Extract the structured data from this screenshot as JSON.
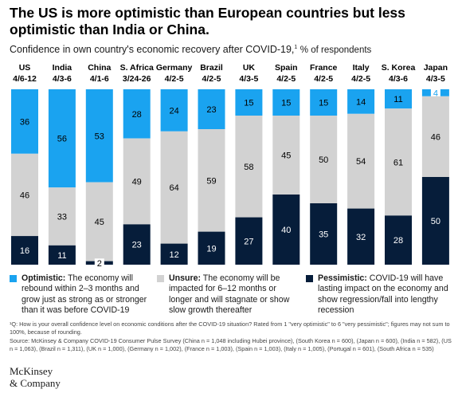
{
  "title": "The US is more optimistic than European countries but less optimistic than India or China.",
  "subtitle": {
    "text": "Confidence in own country's economic recovery after COVID-19,",
    "sup": "1",
    "unit": "% of respondents"
  },
  "colors": {
    "optimistic": "#1aa3f0",
    "unsure": "#d2d2d2",
    "pessimistic": "#061d3a"
  },
  "chart_data": {
    "type": "bar",
    "stacked": true,
    "categories": [
      "US",
      "India",
      "China",
      "S. Africa",
      "Germany",
      "Brazil",
      "UK",
      "Spain",
      "France",
      "Italy",
      "S. Korea",
      "Japan"
    ],
    "dates": [
      "4/6-12",
      "4/3-6",
      "4/1-6",
      "3/24-26",
      "4/2-5",
      "4/2-5",
      "4/3-5",
      "4/2-5",
      "4/2-5",
      "4/2-5",
      "4/3-6",
      "4/3-5"
    ],
    "series": [
      {
        "name": "Optimistic",
        "values": [
          36,
          56,
          53,
          28,
          24,
          23,
          15,
          15,
          15,
          14,
          11,
          4
        ]
      },
      {
        "name": "Unsure",
        "values": [
          46,
          33,
          45,
          49,
          64,
          59,
          58,
          45,
          50,
          54,
          61,
          46
        ]
      },
      {
        "name": "Pessimistic",
        "values": [
          16,
          11,
          2,
          23,
          12,
          19,
          27,
          40,
          35,
          32,
          28,
          50
        ]
      }
    ],
    "legend_position": "bottom"
  },
  "legend": [
    {
      "bold": "Optimistic:",
      "text": " The economy will rebound within 2–3 months and grow just as strong as or stronger than it was before COVID-19"
    },
    {
      "bold": "Unsure:",
      "text": " The economy will be impacted for 6–12 months or longer and will stagnate or show slow growth thereafter"
    },
    {
      "bold": "Pessimistic:",
      "text": " COVID-19 will have lasting impact on the economy and show regression/fall into lengthy recession"
    }
  ],
  "footnote": {
    "line1": "¹Q: How is your overall confidence level on economic conditions after the COVID-19 situation? Rated from 1 \"very optimistic\" to 6 \"very pessimistic\"; figures may not sum to 100%, because of rounding.",
    "line2": "Source: McKinsey & Company COVID-19 Consumer Pulse Survey (China n = 1,048 including Hubei province), (South Korea n = 600), (Japan n = 600), (India n = 582), (US n = 1,063), (Brazil n = 1,311), (UK n = 1,000), (Germany n = 1,002), (France n = 1,003), (Spain n = 1,003), (Italy n = 1,005), (Portugal n = 601), (South Africa n = 535)"
  },
  "logo": {
    "line1": "McKinsey",
    "line2": "& Company"
  }
}
